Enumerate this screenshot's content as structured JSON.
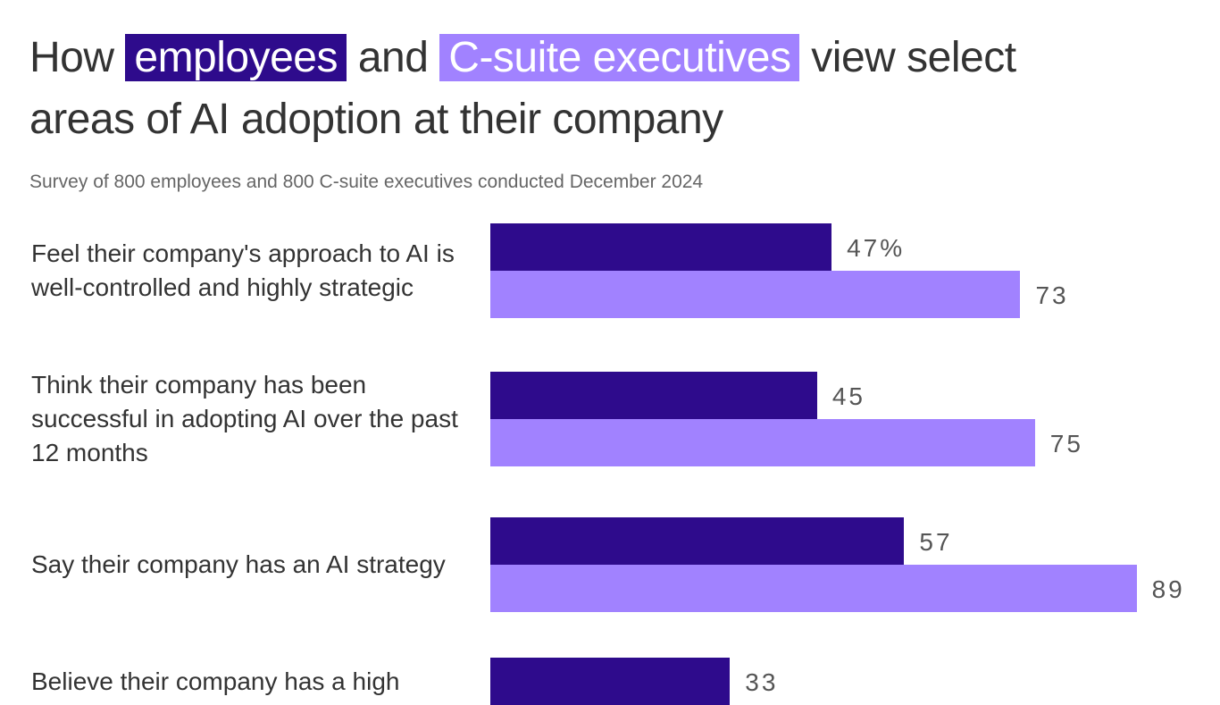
{
  "title": {
    "prefix": "How",
    "employees": "employees",
    "and": "and",
    "execs": "C-suite executives",
    "suffix_line1": "view select",
    "line2": "areas of AI adoption at their company"
  },
  "subtitle": "Survey of 800 employees and 800 C-suite executives conducted December 2024",
  "chart_data": {
    "type": "bar",
    "orientation": "horizontal",
    "unit": "%",
    "xlim": [
      0,
      100
    ],
    "colors": {
      "employees": "#2e0b8c",
      "c_suite": "#a182ff"
    },
    "categories": [
      "Feel their company's approach to AI is well-controlled and highly strategic",
      "Think their company has been successful in adopting AI over the past 12 months",
      "Say their company has an AI strategy",
      "Believe their company has a high"
    ],
    "series": [
      {
        "name": "employees",
        "values": [
          47,
          45,
          57,
          33
        ]
      },
      {
        "name": "C-suite executives",
        "values": [
          73,
          75,
          89,
          null
        ]
      }
    ],
    "value_labels": [
      [
        "47%",
        "73"
      ],
      [
        "45",
        "75"
      ],
      [
        "57",
        "89"
      ],
      [
        "33",
        null
      ]
    ]
  }
}
